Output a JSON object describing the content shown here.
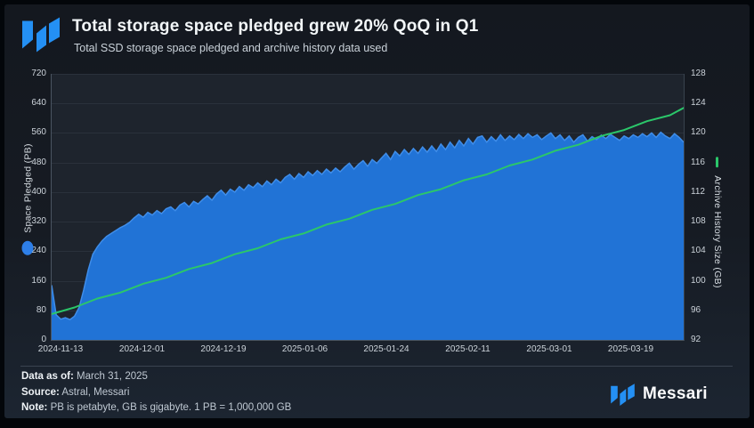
{
  "header": {
    "title": "Total storage space pledged grew 20% QoQ in Q1",
    "subtitle": "Total SSD storage space pledged and archive history data used"
  },
  "chart_data": {
    "type": "area",
    "title": "Total storage space pledged grew 20% QoQ in Q1",
    "grid": true,
    "x_start_date": "2024-11-13",
    "x_end_date": "2025-03-31",
    "total_days": 138,
    "x_tick_labels": [
      "2024-11-13",
      "2024-12-01",
      "2024-12-19",
      "2025-01-06",
      "2025-01-24",
      "2025-02-11",
      "2025-03-01",
      "2025-03-19"
    ],
    "x_tick_day_offsets": [
      0,
      18,
      36,
      54,
      72,
      90,
      108,
      126
    ],
    "y_left_axis": {
      "label": "Space Pledged (PB)",
      "range": [
        0,
        720
      ],
      "ticks": [
        0,
        80,
        160,
        240,
        320,
        400,
        480,
        560,
        640,
        720
      ]
    },
    "y_right_axis": {
      "label": "Archive History Size (GB)",
      "range": [
        92,
        128
      ],
      "ticks": [
        92,
        96,
        100,
        104,
        108,
        112,
        116,
        120,
        124,
        128
      ]
    },
    "series": [
      {
        "name": "Space Pledged",
        "unit": "PB",
        "type": "area",
        "axis": "left",
        "color": "#2173d6",
        "edge_color": "#3f8de9",
        "interval_days": 1,
        "values": [
          148,
          68,
          56,
          60,
          55,
          64,
          88,
          135,
          190,
          232,
          252,
          268,
          280,
          288,
          296,
          304,
          310,
          318,
          330,
          340,
          332,
          345,
          338,
          350,
          342,
          355,
          360,
          350,
          365,
          372,
          360,
          375,
          368,
          380,
          390,
          378,
          395,
          405,
          392,
          408,
          400,
          415,
          405,
          420,
          412,
          425,
          415,
          430,
          420,
          435,
          425,
          440,
          448,
          435,
          450,
          440,
          455,
          445,
          458,
          448,
          462,
          452,
          465,
          455,
          468,
          478,
          462,
          475,
          485,
          470,
          488,
          478,
          492,
          505,
          488,
          510,
          498,
          515,
          502,
          518,
          505,
          522,
          508,
          525,
          510,
          530,
          515,
          535,
          520,
          540,
          525,
          545,
          530,
          548,
          552,
          535,
          550,
          538,
          555,
          540,
          552,
          542,
          556,
          545,
          558,
          548,
          555,
          542,
          552,
          560,
          545,
          555,
          540,
          552,
          535,
          548,
          555,
          538,
          550,
          542,
          554,
          545,
          556,
          548,
          540,
          552,
          545,
          555,
          548,
          558,
          550,
          560,
          548,
          562,
          552,
          545,
          558,
          548,
          535
        ]
      },
      {
        "name": "Archive History Size",
        "unit": "GB",
        "type": "line",
        "axis": "right",
        "color": "#2bc76a",
        "interval_days": 5,
        "values": [
          95.5,
          96.4,
          97.6,
          98.4,
          99.6,
          100.4,
          101.6,
          102.4,
          103.6,
          104.4,
          105.6,
          106.4,
          107.6,
          108.4,
          109.6,
          110.4,
          111.6,
          112.4,
          113.6,
          114.4,
          115.6,
          116.4,
          117.6,
          118.4,
          119.6,
          120.4,
          121.6,
          122.4,
          123.4
        ]
      }
    ]
  },
  "footer": {
    "data_as_of_label": "Data as of:",
    "data_as_of": " March 31, 2025",
    "source_label": "Source:",
    "source": " Astral, Messari",
    "note_label": "Note:",
    "note": " PB is petabyte, GB is gigabyte. 1 PB = 1,000,000 GB",
    "brand": "Messari"
  },
  "colors": {
    "area_blue": "#2173d6",
    "line_green": "#2bc76a",
    "logo_blue": "#2490f4",
    "background_top": "#14181f",
    "background_bottom": "#1c2531",
    "plot_background": "#1e242d"
  }
}
